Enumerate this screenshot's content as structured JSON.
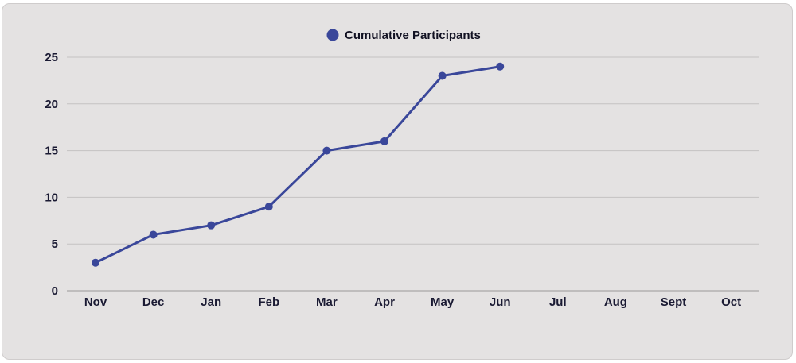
{
  "colors": {
    "series": "#3a479a",
    "grid": "#c4c2c2",
    "axis": "#9a9898",
    "card_bg": "#e4e2e2"
  },
  "chart_data": {
    "type": "line",
    "categories": [
      "Nov",
      "Dec",
      "Jan",
      "Feb",
      "Mar",
      "Apr",
      "May",
      "Jun",
      "Jul",
      "Aug",
      "Sept",
      "Oct"
    ],
    "series": [
      {
        "name": "Cumulative Participants",
        "values": [
          3,
          6,
          7,
          9,
          15,
          16,
          23,
          24,
          null,
          null,
          null,
          null
        ]
      }
    ],
    "yticks": [
      0,
      5,
      10,
      15,
      20,
      25
    ],
    "ylim": [
      0,
      25
    ],
    "grid": true,
    "legend_position": "top-center",
    "title": "",
    "xlabel": "",
    "ylabel": ""
  }
}
